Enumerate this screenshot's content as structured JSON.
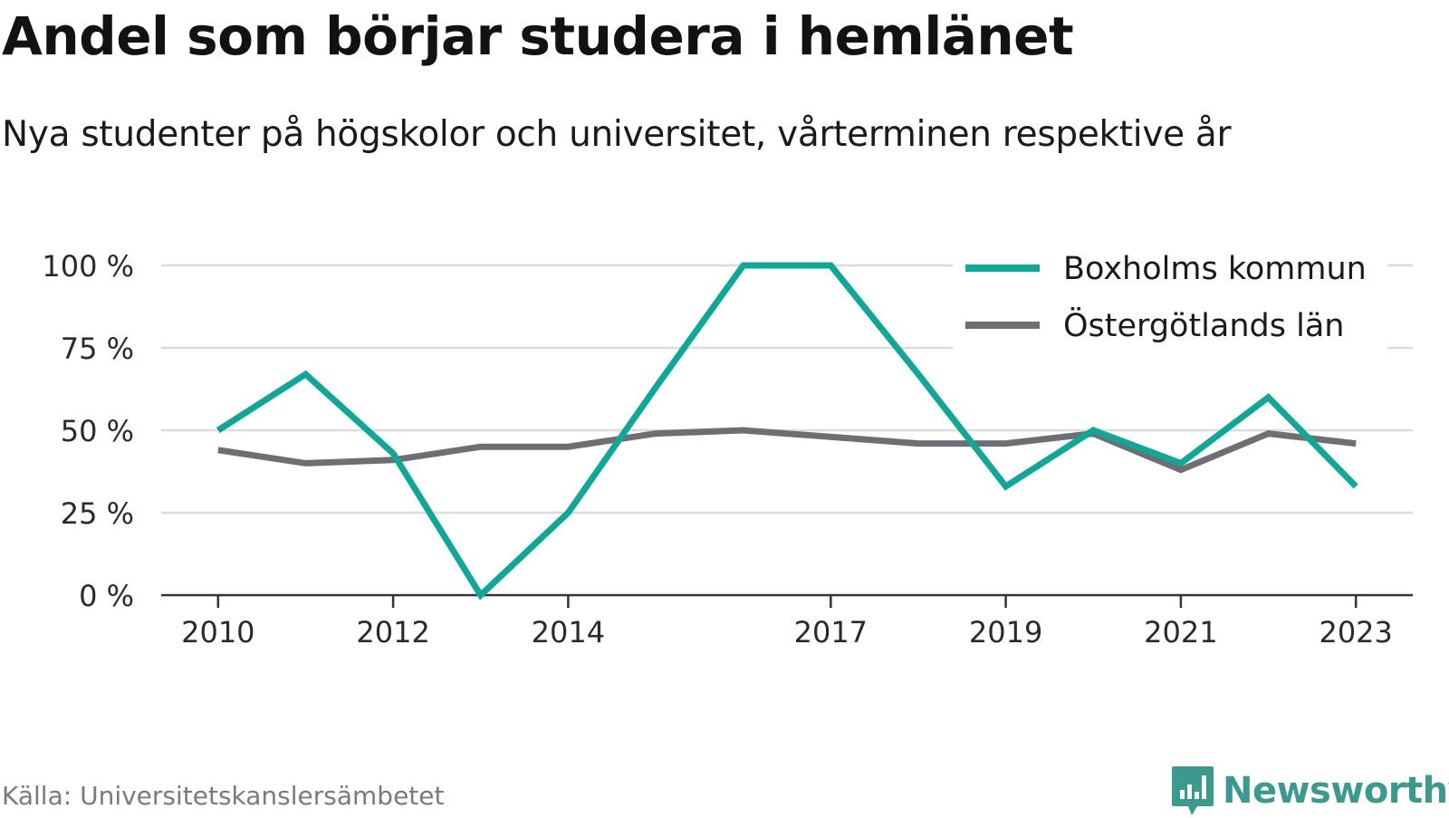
{
  "title": "Andel som börjar studera i hemlänet",
  "subtitle": "Nya studenter på högskolor och universitet, vårterminen respektive år",
  "source": "Källa: Universitetskanslersämbetet",
  "brand": {
    "name": "Newsworthy",
    "icon": "newsworthy-logo-icon",
    "color": "#3a9a90"
  },
  "chart_data": {
    "type": "line",
    "x": [
      2010,
      2011,
      2012,
      2013,
      2014,
      2015,
      2016,
      2017,
      2018,
      2019,
      2020,
      2021,
      2022,
      2023
    ],
    "series": [
      {
        "name": "Boxholms kommun",
        "color": "#0ea899",
        "values": [
          50,
          67,
          43,
          0,
          25,
          63,
          100,
          100,
          67,
          33,
          50,
          40,
          60,
          33
        ]
      },
      {
        "name": "Östergötlands län",
        "color": "#6f6e74",
        "values": [
          44,
          40,
          41,
          45,
          45,
          49,
          50,
          48,
          46,
          46,
          49,
          38,
          49,
          46
        ]
      }
    ],
    "xticks": [
      {
        "value": 2010,
        "label": "2010"
      },
      {
        "value": 2012,
        "label": "2012"
      },
      {
        "value": 2014,
        "label": "2014"
      },
      {
        "value": 2017,
        "label": "2017"
      },
      {
        "value": 2019,
        "label": "2019"
      },
      {
        "value": 2021,
        "label": "2021"
      },
      {
        "value": 2023,
        "label": "2023"
      }
    ],
    "yticks": [
      {
        "value": 0,
        "label": "0 %"
      },
      {
        "value": 25,
        "label": "25 %"
      },
      {
        "value": 50,
        "label": "50 %"
      },
      {
        "value": 75,
        "label": "75 %"
      },
      {
        "value": 100,
        "label": "100 %"
      }
    ],
    "ylim": [
      0,
      100
    ],
    "xlim": [
      2009.35,
      2023.65
    ],
    "grid": "horizontal",
    "legend": "top-right",
    "xlabel": "",
    "ylabel": ""
  }
}
